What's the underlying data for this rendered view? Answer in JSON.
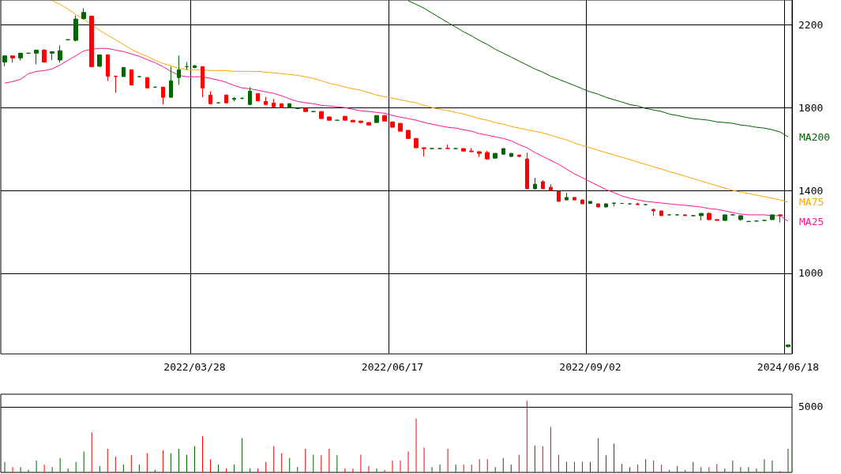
{
  "chart_data": [
    {
      "type": "candlestick",
      "categories": [
        null,
        null,
        null,
        null,
        null,
        null,
        null,
        null,
        null,
        null,
        null,
        null,
        null,
        null,
        null,
        null,
        null,
        null,
        null,
        null,
        null,
        null,
        null,
        null,
        "2022/03/28",
        null,
        null,
        null,
        null,
        null,
        null,
        null,
        null,
        null,
        null,
        null,
        null,
        null,
        null,
        null,
        null,
        null,
        null,
        null,
        null,
        null,
        null,
        null,
        null,
        "2022/06/17",
        null,
        null,
        null,
        null,
        null,
        null,
        null,
        null,
        null,
        null,
        null,
        null,
        null,
        null,
        null,
        null,
        null,
        null,
        null,
        null,
        null,
        null,
        null,
        null,
        "2022/09/02",
        null,
        null,
        null,
        null,
        null,
        null,
        null,
        null,
        null,
        null,
        null,
        null,
        null,
        null,
        null,
        null,
        null,
        null,
        null,
        null,
        null,
        null,
        null,
        null,
        "2024/06/18"
      ],
      "ohlc": [
        [
          2020,
          2050,
          2000,
          2050
        ],
        [
          2050,
          2052,
          2017,
          2040
        ],
        [
          2040,
          2065,
          2028,
          2063
        ],
        [
          2063,
          2065,
          2060,
          2063
        ],
        [
          2063,
          2080,
          2010,
          2078
        ],
        [
          2078,
          2082,
          2017,
          2020
        ],
        [
          2063,
          2070,
          2029,
          2070
        ],
        [
          2030,
          2101,
          2017,
          2075
        ],
        [
          2128,
          2130,
          2125,
          2128
        ],
        [
          2125,
          2245,
          2120,
          2228
        ],
        [
          2230,
          2280,
          2225,
          2260
        ],
        [
          2242,
          2245,
          1998,
          1998
        ],
        [
          2000,
          2055,
          1995,
          2055
        ],
        [
          2055,
          2058,
          1930,
          1952
        ],
        [
          1952,
          1955,
          1873,
          1950
        ],
        [
          1950,
          1996,
          1948,
          1994
        ],
        [
          1983,
          1985,
          1910,
          1910
        ],
        [
          1950,
          1952,
          1948,
          1950
        ],
        [
          1945,
          1947,
          1895,
          1895
        ],
        [
          1899,
          1901,
          1897,
          1899
        ],
        [
          1899,
          1901,
          1815,
          1850
        ],
        [
          1850,
          1998,
          1848,
          1930
        ],
        [
          1945,
          2051,
          1910,
          1983
        ],
        [
          1998,
          2020,
          1983,
          1998
        ],
        [
          1994,
          2006,
          1990,
          2002
        ],
        [
          1998,
          2000,
          1850,
          1895
        ],
        [
          1860,
          1880,
          1815,
          1819
        ],
        [
          1823,
          1825,
          1820,
          1823
        ],
        [
          1861,
          1863,
          1819,
          1823
        ],
        [
          1840,
          1850,
          1830,
          1845
        ],
        [
          1845,
          1850,
          1840,
          1845
        ],
        [
          1815,
          1899,
          1812,
          1880
        ],
        [
          1868,
          1870,
          1830,
          1833
        ],
        [
          1830,
          1852,
          1815,
          1815
        ],
        [
          1822,
          1842,
          1802,
          1804
        ],
        [
          1819,
          1821,
          1800,
          1800
        ],
        [
          1800,
          1821,
          1798,
          1819
        ],
        [
          1796,
          1798,
          1794,
          1796
        ],
        [
          1796,
          1798,
          1781,
          1781
        ],
        [
          1781,
          1783,
          1779,
          1781
        ],
        [
          1781,
          1783,
          1747,
          1747
        ],
        [
          1755,
          1757,
          1739,
          1739
        ],
        [
          1739,
          1741,
          1737,
          1739
        ],
        [
          1758,
          1760,
          1739,
          1739
        ],
        [
          1739,
          1741,
          1731,
          1731
        ],
        [
          1735,
          1737,
          1724,
          1728
        ],
        [
          1728,
          1730,
          1716,
          1716
        ],
        [
          1728,
          1762,
          1726,
          1762
        ],
        [
          1762,
          1764,
          1735,
          1735
        ],
        [
          1731,
          1733,
          1705,
          1705
        ],
        [
          1724,
          1726,
          1686,
          1686
        ],
        [
          1690,
          1692,
          1648,
          1651
        ],
        [
          1651,
          1653,
          1604,
          1606
        ],
        [
          1606,
          1608,
          1564,
          1602
        ],
        [
          1602,
          1604,
          1600,
          1602
        ],
        [
          1602,
          1604,
          1600,
          1602
        ],
        [
          1604,
          1621,
          1600,
          1602
        ],
        [
          1602,
          1604,
          1600,
          1602
        ],
        [
          1602,
          1604,
          1590,
          1590
        ],
        [
          1590,
          1604,
          1585,
          1587
        ],
        [
          1587,
          1589,
          1562,
          1579
        ],
        [
          1583,
          1592,
          1548,
          1552
        ],
        [
          1556,
          1581,
          1554,
          1579
        ],
        [
          1575,
          1604,
          1573,
          1602
        ],
        [
          1564,
          1581,
          1562,
          1579
        ],
        [
          1571,
          1573,
          1560,
          1564
        ],
        [
          1552,
          1583,
          1408,
          1408
        ],
        [
          1408,
          1461,
          1404,
          1430
        ],
        [
          1442,
          1450,
          1408,
          1408
        ],
        [
          1415,
          1430,
          1400,
          1400
        ],
        [
          1396,
          1398,
          1347,
          1347
        ],
        [
          1354,
          1389,
          1352,
          1366
        ],
        [
          1366,
          1368,
          1354,
          1354
        ],
        [
          1354,
          1356,
          1335,
          1335
        ],
        [
          1337,
          1349,
          1335,
          1347
        ],
        [
          1335,
          1337,
          1320,
          1320
        ],
        [
          1320,
          1337,
          1318,
          1335
        ],
        [
          1337,
          1341,
          1324,
          1339
        ],
        [
          1337,
          1339,
          1335,
          1337
        ],
        [
          1335,
          1337,
          1333,
          1335
        ],
        [
          1335,
          1341,
          1331,
          1331
        ],
        [
          1331,
          1333,
          1329,
          1331
        ],
        [
          1308,
          1312,
          1278,
          1301
        ],
        [
          1301,
          1303,
          1278,
          1278
        ],
        [
          1282,
          1284,
          1280,
          1282
        ],
        [
          1282,
          1284,
          1280,
          1282
        ],
        [
          1282,
          1284,
          1278,
          1278
        ],
        [
          1278,
          1280,
          1276,
          1278
        ],
        [
          1278,
          1290,
          1255,
          1289
        ],
        [
          1289,
          1293,
          1255,
          1259
        ],
        [
          1259,
          1261,
          1255,
          1255
        ],
        [
          1255,
          1282,
          1253,
          1282
        ],
        [
          1282,
          1284,
          1280,
          1282
        ],
        [
          1259,
          1280,
          1253,
          1278
        ],
        [
          1250,
          1252,
          1248,
          1250
        ],
        [
          1252,
          1254,
          1250,
          1252
        ],
        [
          1255,
          1257,
          1253,
          1255
        ],
        [
          1259,
          1282,
          1257,
          1282
        ],
        [
          1282,
          1285,
          1245,
          1278
        ],
        [
          645,
          655,
          642,
          653
        ]
      ],
      "colors": [
        "#006600",
        "#ff0000",
        "#006600",
        "#006600",
        "#006600",
        "#ff0000",
        "#006600",
        "#006600",
        "#006600",
        "#006600",
        "#006600",
        "#ff0000",
        "#006600",
        "#ff0000",
        "#ff0000",
        "#006600",
        "#ff0000",
        "#006600",
        "#ff0000",
        "#006600",
        "#ff0000",
        "#006600",
        "#006600",
        "#006600",
        "#006600",
        "#ff0000",
        "#ff0000",
        "#006600",
        "#ff0000",
        "#006600",
        "#006600",
        "#006600",
        "#ff0000",
        "#ff0000",
        "#ff0000",
        "#ff0000",
        "#006600",
        "#006600",
        "#ff0000",
        "#006600",
        "#ff0000",
        "#ff0000",
        "#006600",
        "#ff0000",
        "#ff0000",
        "#ff0000",
        "#ff0000",
        "#006600",
        "#ff0000",
        "#ff0000",
        "#ff0000",
        "#ff0000",
        "#ff0000",
        "#ff0000",
        "#006600",
        "#006600",
        "#ff0000",
        "#006600",
        "#ff0000",
        "#ff0000",
        "#ff0000",
        "#ff0000",
        "#006600",
        "#006600",
        "#006600",
        "#ff0000",
        "#ff0000",
        "#006600",
        "#ff0000",
        "#ff0000",
        "#ff0000",
        "#006600",
        "#ff0000",
        "#ff0000",
        "#006600",
        "#ff0000",
        "#006600",
        "#006600",
        "#006600",
        "#006600",
        "#ff0000",
        "#006600",
        "#ff0000",
        "#ff0000",
        "#006600",
        "#006600",
        "#ff0000",
        "#006600",
        "#006600",
        "#ff0000",
        "#ff0000",
        "#006600",
        "#006600",
        "#006600",
        "#006600",
        "#006600",
        "#006600",
        "#006600",
        "#ff0000",
        "#006600"
      ],
      "series": [
        {
          "type": "line",
          "name": "MA200",
          "color": "#006400",
          "values": [
            null,
            null,
            null,
            null,
            null,
            null,
            null,
            null,
            null,
            null,
            null,
            null,
            null,
            null,
            null,
            null,
            null,
            null,
            null,
            null,
            null,
            null,
            null,
            null,
            null,
            null,
            null,
            null,
            null,
            null,
            null,
            null,
            null,
            null,
            null,
            null,
            null,
            null,
            null,
            null,
            null,
            null,
            null,
            null,
            null,
            null,
            null,
            null,
            null,
            null,
            null,
            2316,
            2299,
            2280,
            2257,
            2234,
            2211,
            2189,
            2166,
            2147,
            2124,
            2105,
            2082,
            2063,
            2044,
            2025,
            2006,
            1987,
            1971,
            1952,
            1937,
            1922,
            1907,
            1891,
            1876,
            1865,
            1850,
            1838,
            1827,
            1815,
            1808,
            1796,
            1789,
            1781,
            1769,
            1762,
            1754,
            1747,
            1743,
            1739,
            1731,
            1728,
            1724,
            1716,
            1712,
            1705,
            1701,
            1693,
            1682,
            1659
          ]
        },
        {
          "type": "line",
          "name": "MA75",
          "color": "#ffa500",
          "values": [
            null,
            null,
            null,
            null,
            null,
            null,
            2316,
            2299,
            2276,
            2250,
            2227,
            2200,
            2173,
            2150,
            2128,
            2105,
            2082,
            2063,
            2048,
            2029,
            2013,
            2002,
            1990,
            1983,
            1983,
            1983,
            1979,
            1979,
            1979,
            1975,
            1975,
            1975,
            1975,
            1971,
            1968,
            1964,
            1960,
            1956,
            1949,
            1941,
            1930,
            1918,
            1910,
            1899,
            1891,
            1884,
            1872,
            1861,
            1853,
            1846,
            1838,
            1830,
            1823,
            1811,
            1800,
            1792,
            1785,
            1777,
            1769,
            1758,
            1747,
            1739,
            1728,
            1720,
            1709,
            1701,
            1693,
            1686,
            1678,
            1667,
            1655,
            1644,
            1629,
            1617,
            1606,
            1594,
            1583,
            1571,
            1560,
            1549,
            1537,
            1526,
            1514,
            1503,
            1491,
            1480,
            1469,
            1457,
            1446,
            1434,
            1423,
            1411,
            1400,
            1392,
            1385,
            1377,
            1370,
            1362,
            1354,
            1343
          ]
        },
        {
          "type": "line",
          "name": "MA25",
          "color": "#ff1493",
          "values": [
            1918,
            1926,
            1937,
            1964,
            1975,
            1979,
            1987,
            2006,
            2029,
            2051,
            2074,
            2082,
            2086,
            2086,
            2078,
            2071,
            2059,
            2048,
            2032,
            2017,
            1998,
            1975,
            1956,
            1949,
            1949,
            1949,
            1941,
            1933,
            1922,
            1907,
            1895,
            1891,
            1884,
            1876,
            1869,
            1857,
            1842,
            1830,
            1823,
            1819,
            1811,
            1808,
            1804,
            1800,
            1792,
            1785,
            1781,
            1777,
            1773,
            1762,
            1754,
            1747,
            1739,
            1728,
            1720,
            1712,
            1705,
            1701,
            1693,
            1686,
            1674,
            1667,
            1659,
            1651,
            1640,
            1621,
            1606,
            1583,
            1564,
            1545,
            1526,
            1503,
            1480,
            1461,
            1442,
            1423,
            1404,
            1389,
            1373,
            1362,
            1354,
            1347,
            1343,
            1339,
            1335,
            1331,
            1328,
            1324,
            1320,
            1312,
            1309,
            1301,
            1293,
            1286,
            1282,
            1282,
            1282,
            1278,
            1278,
            1251
          ]
        }
      ],
      "ylim": [
        610,
        2320
      ],
      "yticks": [
        1000,
        1400,
        1800,
        2200
      ],
      "grid": true
    },
    {
      "type": "bar",
      "categories": [
        null,
        null,
        null,
        null,
        null,
        null,
        null,
        null,
        null,
        null,
        null,
        null,
        null,
        null,
        null,
        null,
        null,
        null,
        null,
        null,
        null,
        null,
        null,
        null,
        "2022/03/28",
        null,
        null,
        null,
        null,
        null,
        null,
        null,
        null,
        null,
        null,
        null,
        null,
        null,
        null,
        null,
        null,
        null,
        null,
        null,
        null,
        null,
        null,
        null,
        null,
        "2022/06/17",
        null,
        null,
        null,
        null,
        null,
        null,
        null,
        null,
        null,
        null,
        null,
        null,
        null,
        null,
        null,
        null,
        null,
        null,
        null,
        null,
        null,
        null,
        null,
        null,
        "2022/09/02",
        null,
        null,
        null,
        null,
        null,
        null,
        null,
        null,
        null,
        null,
        null,
        null,
        null,
        null,
        null,
        null,
        null,
        null,
        null,
        null,
        null,
        null,
        null,
        null,
        "2024/06/18"
      ],
      "values": [
        800,
        400,
        400,
        200,
        900,
        600,
        400,
        1100,
        300,
        800,
        1600,
        3050,
        500,
        1800,
        1200,
        600,
        1300,
        600,
        1450,
        200,
        1700,
        1450,
        1800,
        1350,
        2000,
        2750,
        1000,
        600,
        300,
        600,
        2600,
        300,
        300,
        800,
        2000,
        1450,
        1100,
        400,
        1800,
        1350,
        1300,
        1800,
        1300,
        300,
        300,
        1350,
        500,
        300,
        200,
        900,
        900,
        1600,
        4100,
        1900,
        400,
        600,
        1800,
        600,
        600,
        600,
        1000,
        1000,
        400,
        1100,
        600,
        1350,
        5450,
        2050,
        2000,
        3450,
        1350,
        800,
        800,
        800,
        800,
        2600,
        1300,
        2200,
        650,
        400,
        600,
        1000,
        900,
        600,
        200,
        500,
        200,
        800,
        400,
        400,
        650,
        300,
        900,
        400,
        400,
        300,
        1000,
        900,
        100,
        1800
      ],
      "colors": [
        "#006600",
        "#ff0000",
        "#006600",
        "#006600",
        "#006600",
        "#ff0000",
        "#006600",
        "#006600",
        "#006600",
        "#006600",
        "#006600",
        "#ff0000",
        "#006600",
        "#ff0000",
        "#ff0000",
        "#006600",
        "#ff0000",
        "#006600",
        "#ff0000",
        "#006600",
        "#ff0000",
        "#006600",
        "#006600",
        "#006600",
        "#006600",
        "#ff0000",
        "#ff0000",
        "#006600",
        "#ff0000",
        "#006600",
        "#006600",
        "#006600",
        "#ff0000",
        "#ff0000",
        "#ff0000",
        "#ff0000",
        "#006600",
        "#006600",
        "#ff0000",
        "#006600",
        "#ff0000",
        "#ff0000",
        "#006600",
        "#ff0000",
        "#ff0000",
        "#ff0000",
        "#ff0000",
        "#006600",
        "#ff0000",
        "#ff0000",
        "#ff0000",
        "#ff0000",
        "#ff0000",
        "#ff0000",
        "#006600",
        "#006600",
        "#ff0000",
        "#006600",
        "#ff0000",
        "#ff0000",
        "#ff0000",
        "#ff0000",
        "#006600",
        "#006600",
        "#006600",
        "#ff0000",
        "#ff0000",
        "#006600",
        "#ff0000",
        "#ff0000",
        "#ff0000",
        "#006600",
        "#ff0000",
        "#ff0000",
        "#006600",
        "#ff0000",
        "#006600",
        "#006600",
        "#006600",
        "#006600",
        "#ff0000",
        "#006600",
        "#ff0000",
        "#ff0000",
        "#006600",
        "#006600",
        "#ff0000",
        "#006600",
        "#006600",
        "#ff0000",
        "#ff0000",
        "#006600",
        "#006600",
        "#006600",
        "#006600",
        "#006600",
        "#006600",
        "#006600",
        "#ff0000",
        "#006600"
      ],
      "ylim": [
        0,
        5950
      ],
      "yticks": [
        5000
      ],
      "grid": "y",
      "tick_labels": "y"
    }
  ]
}
